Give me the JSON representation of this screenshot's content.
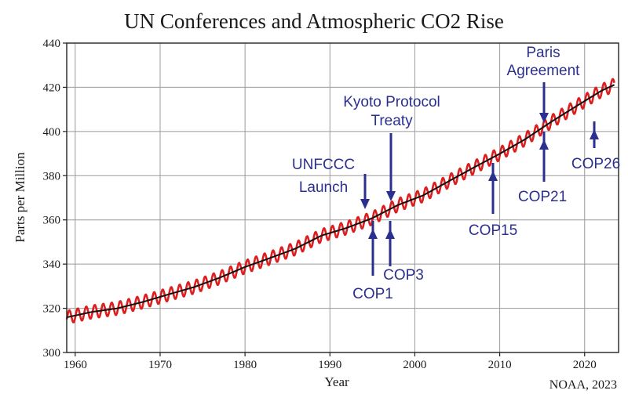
{
  "chart_data": {
    "type": "line",
    "title": "UN Conferences and Atmospheric CO2 Rise",
    "xlabel": "Year",
    "ylabel": "Parts per Million",
    "xlim": [
      1959,
      2024
    ],
    "ylim": [
      300,
      440
    ],
    "x_ticks": [
      "1960",
      "1970",
      "1980",
      "1990",
      "2000",
      "2010",
      "2020"
    ],
    "y_ticks": [
      "300",
      "320",
      "340",
      "360",
      "380",
      "400",
      "420",
      "440"
    ],
    "grid": true,
    "credit": "NOAA, 2023",
    "colors": {
      "monthly": "#dd1e1e",
      "trend": "#111111",
      "annotation": "#2b2f8f"
    },
    "series": [
      {
        "style": "monthly-seasonal",
        "x": [
          1959,
          1962,
          1965,
          1968,
          1971,
          1974,
          1977,
          1980,
          1983,
          1986,
          1989,
          1992,
          1995,
          1998,
          2001,
          2004,
          2007,
          2010,
          2013,
          2016,
          2019,
          2022,
          2023.5
        ],
        "y": [
          315.9,
          318.4,
          320.0,
          322.9,
          326.3,
          329.6,
          333.8,
          338.7,
          342.8,
          347.1,
          352.9,
          356.4,
          360.8,
          366.7,
          371.1,
          377.5,
          383.8,
          389.9,
          396.5,
          404.2,
          411.4,
          418.5,
          421.1
        ],
        "seasonal_amplitude": 3
      },
      {
        "style": "trend",
        "x": [
          1959,
          1962,
          1965,
          1968,
          1971,
          1974,
          1977,
          1980,
          1983,
          1986,
          1989,
          1992,
          1995,
          1998,
          2001,
          2004,
          2007,
          2010,
          2013,
          2016,
          2019,
          2022,
          2023.5
        ],
        "y": [
          315.9,
          318.4,
          320.0,
          322.9,
          326.3,
          329.6,
          333.8,
          338.7,
          342.8,
          347.1,
          352.9,
          356.4,
          360.8,
          366.7,
          371.1,
          377.5,
          383.8,
          389.9,
          396.5,
          404.2,
          411.4,
          418.5,
          421.1
        ]
      }
    ],
    "annotations": [
      {
        "lines": [
          "UNFCCC",
          "Launch"
        ],
        "year": 1994,
        "direction": "down"
      },
      {
        "lines": [
          "Kyoto Protocol",
          "Treaty"
        ],
        "year": 1997,
        "direction": "down"
      },
      {
        "lines": [
          "Paris",
          "Agreement"
        ],
        "year": 2015,
        "direction": "down"
      },
      {
        "lines": [
          "COP1"
        ],
        "year": 1995,
        "direction": "up"
      },
      {
        "lines": [
          "COP3"
        ],
        "year": 1997,
        "direction": "up"
      },
      {
        "lines": [
          "COP15"
        ],
        "year": 2009,
        "direction": "up"
      },
      {
        "lines": [
          "COP21"
        ],
        "year": 2015,
        "direction": "up"
      },
      {
        "lines": [
          "COP26"
        ],
        "year": 2021,
        "direction": "up"
      }
    ]
  }
}
